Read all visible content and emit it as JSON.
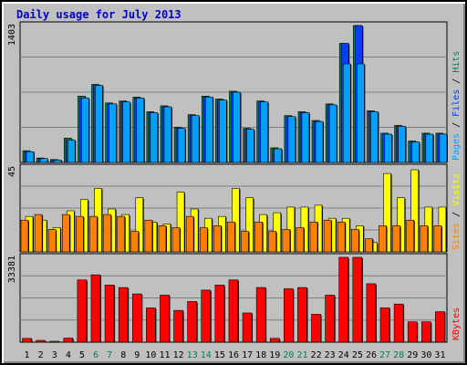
{
  "colors": {
    "background": "#c0c0c0",
    "plot_bg": "#c0c0c0",
    "title": "#0000cc",
    "hits": "#00805c",
    "files": "#0040ff",
    "pages": "#00a0ff",
    "visits": "#ffff00",
    "sites": "#ff8000",
    "kbytes": "#ff0000",
    "weekend_label": "#00805c",
    "weekday_label": "#000000"
  },
  "chart_data": {
    "type": "bar",
    "title": "Daily usage for July 2013",
    "categories": [
      "1",
      "2",
      "3",
      "4",
      "5",
      "6",
      "7",
      "8",
      "9",
      "10",
      "11",
      "12",
      "13",
      "14",
      "15",
      "16",
      "17",
      "18",
      "19",
      "20",
      "21",
      "22",
      "23",
      "24",
      "25",
      "26",
      "27",
      "28",
      "29",
      "30",
      "31"
    ],
    "weekend_days": [
      "6",
      "7",
      "13",
      "14",
      "20",
      "21",
      "27",
      "28"
    ],
    "panels": [
      {
        "name": "hits-files-pages",
        "ymax_label": "1403",
        "ylim": [
          0,
          1403
        ],
        "legend": [
          "Pages",
          "Files",
          "Hits"
        ],
        "series": [
          {
            "name": "Hits",
            "values": [
              120,
              45,
              30,
              250,
              680,
              800,
              610,
              630,
              670,
              520,
              580,
              360,
              490,
              680,
              650,
              730,
              350,
              630,
              150,
              480,
              520,
              430,
              600,
              1220,
              1403,
              530,
              300,
              380,
              220,
              300,
              300
            ]
          },
          {
            "name": "Files",
            "values": [
              110,
              40,
              25,
              230,
              660,
              790,
              600,
              620,
              660,
              510,
              570,
              350,
              480,
              670,
              640,
              720,
              340,
              620,
              140,
              470,
              510,
              420,
              590,
              1220,
              1403,
              520,
              290,
              370,
              210,
              290,
              290
            ]
          },
          {
            "name": "Pages",
            "values": [
              110,
              40,
              25,
              230,
              660,
              790,
              600,
              620,
              660,
              510,
              570,
              350,
              480,
              670,
              640,
              720,
              340,
              620,
              140,
              470,
              510,
              420,
              590,
              1010,
              1010,
              520,
              290,
              370,
              210,
              290,
              290
            ]
          }
        ]
      },
      {
        "name": "visits-sites",
        "ymax_label": "45",
        "ylim": [
          0,
          45
        ],
        "legend": [
          "Sites",
          "Visits"
        ],
        "series": [
          {
            "name": "Visits",
            "values": [
              19,
              17,
              13,
              22,
              28,
              34,
              23,
              20,
              29,
              16,
              15,
              32,
              23,
              18,
              19,
              34,
              29,
              20,
              21,
              24,
              24,
              25,
              18,
              18,
              14,
              5,
              42,
              29,
              44,
              24,
              24
            ]
          },
          {
            "name": "Sites",
            "values": [
              17,
              20,
              12,
              20,
              19,
              19,
              20,
              19,
              11,
              17,
              14,
              13,
              19,
              13,
              14,
              16,
              11,
              16,
              11,
              12,
              13,
              16,
              17,
              16,
              12,
              7,
              14,
              14,
              17,
              14,
              14
            ]
          }
        ]
      },
      {
        "name": "kbytes",
        "ymax_label": "33381",
        "ylim": [
          0,
          33381
        ],
        "legend": [
          "KBytes"
        ],
        "series": [
          {
            "name": "KBytes",
            "values": [
              1500,
              700,
              300,
              1600,
              24500,
              26500,
              22500,
              21500,
              19000,
              13500,
              18500,
              12500,
              16000,
              20500,
              22500,
              24500,
              11500,
              21500,
              1500,
              21000,
              21500,
              11000,
              18500,
              33381,
              33381,
              23000,
              13500,
              15000,
              8000,
              8000,
              12000
            ]
          }
        ]
      }
    ]
  }
}
